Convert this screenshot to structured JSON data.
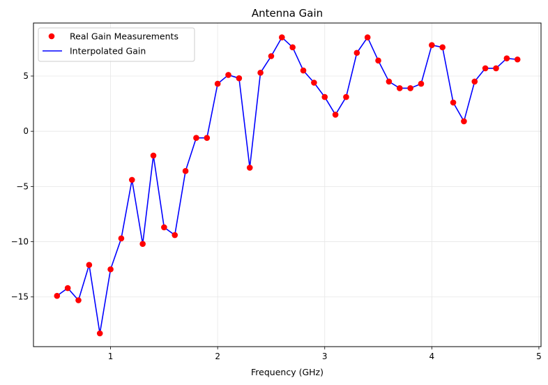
{
  "colors": {
    "points": "#ff0000",
    "line": "#0000ff",
    "grid": "#e6e6e6",
    "axes": "#000000"
  },
  "chart_data": {
    "type": "line",
    "title": "Antenna Gain",
    "xlabel": "Frequency (GHz)",
    "ylabel": "",
    "xlim": [
      0.28,
      5.02
    ],
    "ylim": [
      -19.5,
      9.8
    ],
    "x_ticks": [
      1,
      2,
      3,
      4,
      5
    ],
    "y_ticks": [
      -15,
      -10,
      -5,
      0,
      5
    ],
    "grid": true,
    "legend_position": "top-left",
    "x": [
      0.5,
      0.6,
      0.7,
      0.8,
      0.9,
      1.0,
      1.1,
      1.2,
      1.3,
      1.4,
      1.5,
      1.6,
      1.7,
      1.8,
      1.9,
      2.0,
      2.1,
      2.2,
      2.3,
      2.4,
      2.5,
      2.6,
      2.7,
      2.8,
      2.9,
      3.0,
      3.1,
      3.2,
      3.3,
      3.4,
      3.5,
      3.6,
      3.7,
      3.8,
      3.9,
      4.0,
      4.1,
      4.2,
      4.3,
      4.4,
      4.5,
      4.6,
      4.7,
      4.8
    ],
    "series": [
      {
        "name": "Real Gain Measurements",
        "style": "markers",
        "values": [
          -14.9,
          -14.2,
          -15.3,
          -12.1,
          -18.3,
          -12.5,
          -9.7,
          -4.4,
          -10.2,
          -2.2,
          -8.7,
          -9.4,
          -3.6,
          -0.6,
          -0.6,
          4.3,
          5.1,
          4.8,
          -3.3,
          5.3,
          6.8,
          8.5,
          7.6,
          5.5,
          4.4,
          3.1,
          1.5,
          3.1,
          7.1,
          8.5,
          6.4,
          4.5,
          3.9,
          3.9,
          4.3,
          7.8,
          7.6,
          2.6,
          0.9,
          4.5,
          5.7,
          5.7,
          6.6,
          6.5
        ]
      },
      {
        "name": "Interpolated Gain",
        "style": "line",
        "values": [
          -14.9,
          -14.2,
          -15.3,
          -12.1,
          -18.3,
          -12.5,
          -9.7,
          -4.4,
          -10.2,
          -2.2,
          -8.7,
          -9.4,
          -3.6,
          -0.6,
          -0.6,
          4.3,
          5.1,
          4.8,
          -3.3,
          5.3,
          6.8,
          8.5,
          7.6,
          5.5,
          4.4,
          3.1,
          1.5,
          3.1,
          7.1,
          8.5,
          6.4,
          4.5,
          3.9,
          3.9,
          4.3,
          7.8,
          7.6,
          2.6,
          0.9,
          4.5,
          5.7,
          5.7,
          6.6,
          6.5
        ]
      }
    ]
  }
}
